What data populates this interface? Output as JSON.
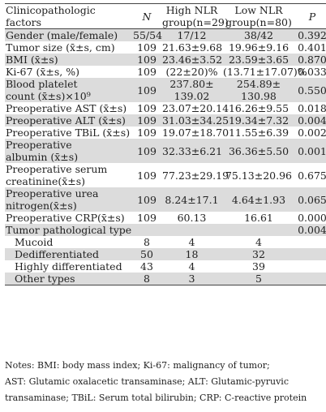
{
  "header": {
    "col0": [
      "Clinicopathologic",
      "factors"
    ],
    "col1": "N",
    "col2": [
      "High NLR",
      "group(n=29)"
    ],
    "col3": [
      "Low NLR",
      "group(n=80)"
    ],
    "col4": "P"
  },
  "rows": [
    {
      "label": [
        "Gender (male/female)"
      ],
      "n": "55/54",
      "high": [
        "17/12"
      ],
      "low": [
        "38/42"
      ],
      "p": "0.392",
      "shade": true
    },
    {
      "label": [
        "Tumor size (x̄±s, cm)"
      ],
      "n": "109",
      "high": [
        "21.63±9.68"
      ],
      "low": [
        "19.96±9.16"
      ],
      "p": "0.401",
      "shade": false
    },
    {
      "label": [
        "BMI (x̄±s)"
      ],
      "n": "109",
      "high": [
        "23.46±3.52"
      ],
      "low": [
        "23.59±3.65"
      ],
      "p": "0.870",
      "shade": true
    },
    {
      "label": [
        "Ki-67 (x̄±s, %)"
      ],
      "n": "109",
      "high": [
        "(22±20)%"
      ],
      "low": [
        "(13.71±17.07)%"
      ],
      "p": "0.033",
      "shade": false
    },
    {
      "label": [
        "Blood platelet",
        "count (x̄±s)×10⁹"
      ],
      "n": "109",
      "high": [
        "237.80±",
        "139.02"
      ],
      "low": [
        "254.89±",
        "130.98"
      ],
      "p": "0.550",
      "shade": true
    },
    {
      "label": [
        "Preoperative AST (x̄±s)"
      ],
      "n": "109",
      "high": [
        "23.07±20.14"
      ],
      "low": [
        "16.26±9.55"
      ],
      "p": "0.018",
      "shade": false
    },
    {
      "label": [
        "Preoperative ALT (x̄±s)"
      ],
      "n": "109",
      "high": [
        "31.03±34.25"
      ],
      "low": [
        "19.34±7.32"
      ],
      "p": "0.004",
      "shade": true
    },
    {
      "label": [
        "Preoperative TBiL (x̄±s)"
      ],
      "n": "109",
      "high": [
        "19.07±18.70"
      ],
      "low": [
        "11.55±6.39"
      ],
      "p": "0.002",
      "shade": false
    },
    {
      "label": [
        "Preoperative",
        "albumin (x̄±s)"
      ],
      "n": "109",
      "high": [
        "32.33±6.21"
      ],
      "low": [
        "36.36±5.50"
      ],
      "p": "0.001",
      "shade": true
    },
    {
      "label": [
        "Preoperative serum",
        "creatinine(x̄±s)"
      ],
      "n": "109",
      "high": [
        "77.23±29.19"
      ],
      "low": [
        "75.13±20.96"
      ],
      "p": "0.675",
      "shade": false
    },
    {
      "label": [
        "Preoperative urea",
        "nitrogen(x̄±s)"
      ],
      "n": "109",
      "high": [
        "8.24±17.1"
      ],
      "low": [
        "4.64±1.93"
      ],
      "p": "0.065",
      "shade": true
    },
    {
      "label": [
        "Preoperative CRP(x̄±s)"
      ],
      "n": "109",
      "high": [
        "60.13"
      ],
      "low": [
        "16.61"
      ],
      "p": "0.000",
      "shade": false
    },
    {
      "label": [
        "Tumor pathological type"
      ],
      "n": "",
      "high": [
        ""
      ],
      "low": [
        ""
      ],
      "p": "0.004",
      "shade": true
    },
    {
      "label": [
        "Mucoid"
      ],
      "n": "8",
      "high": [
        "4"
      ],
      "low": [
        "4"
      ],
      "p": "",
      "shade": false,
      "indent": true
    },
    {
      "label": [
        "Dedifferentiated"
      ],
      "n": "50",
      "high": [
        "18"
      ],
      "low": [
        "32"
      ],
      "p": "",
      "shade": true,
      "indent": true
    },
    {
      "label": [
        "Highly differentiated"
      ],
      "n": "43",
      "high": [
        "4"
      ],
      "low": [
        "39"
      ],
      "p": "",
      "shade": false,
      "indent": true
    },
    {
      "label": [
        "Other types"
      ],
      "n": "8",
      "high": [
        "3"
      ],
      "low": [
        "5"
      ],
      "p": "",
      "shade": true,
      "indent": true
    }
  ],
  "notes": [
    "Notes: BMI: body mass index; Ki-67: malignancy of tumor;",
    "AST: Glutamic oxalacetic transaminase; ALT: Glutamic-pyruvic",
    "transaminase; TBiL: Serum total bilirubin; CRP: C-reactive protein"
  ]
}
